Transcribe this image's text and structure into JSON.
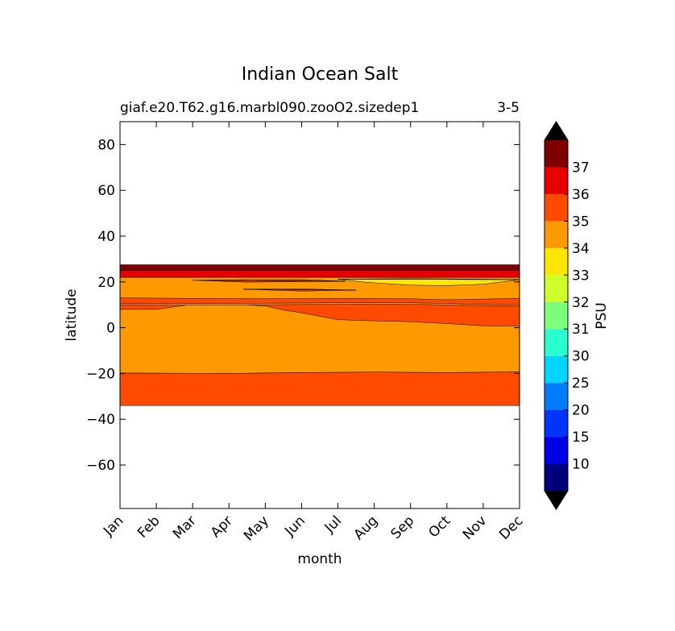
{
  "chart_data": {
    "type": "filled-contour",
    "title": "Indian Ocean Salt",
    "subtitle_left": "giaf.e20.T62.g16.marbl090.zooO2.sizedep1",
    "subtitle_right": "3-5",
    "xlabel": "month",
    "ylabel": "latitude",
    "x_categories": [
      "Jan",
      "Feb",
      "Mar",
      "Apr",
      "May",
      "Jun",
      "Jul",
      "Aug",
      "Sep",
      "Oct",
      "Nov",
      "Dec"
    ],
    "ylim": [
      -79,
      90
    ],
    "y_ticks": [
      80,
      60,
      40,
      20,
      0,
      -20,
      -40,
      -60
    ],
    "y_tick_labels": [
      "80",
      "60",
      "40",
      "20",
      "0",
      "−20",
      "−40",
      "−60"
    ],
    "colorbar": {
      "label": "PSU",
      "extend": "both",
      "levels": [
        5,
        10,
        15,
        20,
        25,
        30,
        31,
        32,
        33,
        34,
        35,
        36,
        37,
        38
      ],
      "tick_labels": [
        "10",
        "15",
        "20",
        "25",
        "30",
        "31",
        "32",
        "33",
        "34",
        "35",
        "36",
        "37"
      ],
      "colors": [
        "#00007f",
        "#0000e6",
        "#0035ff",
        "#007dff",
        "#00d4ff",
        "#29ffce",
        "#7dff7a",
        "#ceff29",
        "#ffe600",
        "#ff9900",
        "#ff4a00",
        "#e60000",
        "#7f0000"
      ],
      "under_color": "#000000",
      "over_color": "#000000"
    },
    "bands": [
      {
        "psu_range": "35-36",
        "lat_from": -34,
        "lat_to": -19.8,
        "color": "#ff4a00"
      },
      {
        "psu_range": "34-35",
        "lat_from": -19.8,
        "lat_to": 22,
        "color": "#ff9900"
      },
      {
        "psu_range": "35-36",
        "lat_from": 3,
        "lat_to": 13,
        "color": "#ff4a00",
        "note": "widens from Jun to Dec"
      },
      {
        "psu_range": "33-34",
        "lat_from": 18,
        "lat_to": 21,
        "color": "#ffe600",
        "months": "Aug-Dec"
      },
      {
        "psu_range": "36-37",
        "lat_from": 22,
        "lat_to": 25,
        "color": "#e60000"
      },
      {
        "psu_range": "37-38",
        "lat_from": 25,
        "lat_to": 27.5,
        "color": "#7f0000"
      }
    ]
  }
}
